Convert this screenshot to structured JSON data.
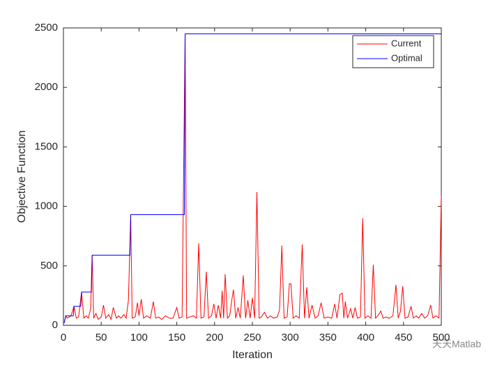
{
  "chart_data": {
    "type": "line",
    "xlabel": "Iteration",
    "ylabel": "Objective Function",
    "xlim": [
      0,
      500
    ],
    "ylim": [
      0,
      2500
    ],
    "xticks": [
      0,
      50,
      100,
      150,
      200,
      250,
      300,
      350,
      400,
      450,
      500
    ],
    "yticks": [
      0,
      500,
      1000,
      1500,
      2000,
      2500
    ],
    "legend_position": "upper-right",
    "watermark": "天天Matlab",
    "series": [
      {
        "name": "Current",
        "color": "#ff0000",
        "x": [
          1,
          3,
          5,
          10,
          14,
          17,
          20,
          24,
          27,
          30,
          33,
          36,
          38,
          40,
          43,
          46,
          50,
          53,
          56,
          60,
          63,
          66,
          70,
          73,
          76,
          80,
          83,
          86,
          89,
          91,
          95,
          98,
          100,
          103,
          106,
          110,
          115,
          119,
          122,
          126,
          130,
          135,
          140,
          145,
          150,
          153,
          157,
          161,
          163,
          167,
          172,
          176,
          179,
          182,
          186,
          189,
          192,
          196,
          199,
          202,
          205,
          208,
          210,
          212,
          214,
          217,
          220,
          223,
          225,
          228,
          231,
          234,
          238,
          241,
          244,
          247,
          250,
          253,
          256,
          259,
          262,
          266,
          270,
          274,
          278,
          283,
          286,
          289,
          292,
          296,
          299,
          301,
          304,
          308,
          312,
          316,
          319,
          322,
          325,
          329,
          333,
          337,
          341,
          345,
          350,
          355,
          359,
          362,
          366,
          369,
          371,
          373,
          376,
          380,
          383,
          386,
          389,
          393,
          396,
          399,
          403,
          407,
          410,
          413,
          416,
          420,
          423,
          427,
          431,
          436,
          440,
          443,
          446,
          449,
          452,
          456,
          460,
          463,
          467,
          470,
          474,
          478,
          482,
          486,
          489,
          493,
          497,
          500
        ],
        "values": [
          20,
          80,
          60,
          80,
          160,
          60,
          70,
          280,
          60,
          80,
          60,
          140,
          590,
          60,
          100,
          50,
          70,
          170,
          60,
          90,
          50,
          150,
          60,
          80,
          60,
          90,
          60,
          210,
          930,
          60,
          70,
          190,
          80,
          220,
          60,
          80,
          60,
          200,
          60,
          70,
          50,
          80,
          60,
          60,
          150,
          60,
          70,
          2450,
          60,
          70,
          80,
          60,
          690,
          60,
          70,
          450,
          60,
          80,
          180,
          60,
          170,
          60,
          290,
          60,
          430,
          60,
          80,
          220,
          300,
          60,
          150,
          60,
          420,
          60,
          210,
          60,
          230,
          60,
          1120,
          60,
          70,
          110,
          60,
          80,
          60,
          70,
          130,
          670,
          60,
          70,
          350,
          350,
          60,
          80,
          60,
          680,
          60,
          320,
          60,
          170,
          60,
          80,
          190,
          60,
          70,
          60,
          180,
          60,
          260,
          270,
          60,
          200,
          60,
          140,
          60,
          150,
          60,
          70,
          900,
          60,
          80,
          60,
          510,
          60,
          80,
          120,
          60,
          70,
          60,
          80,
          340,
          60,
          120,
          330,
          60,
          70,
          160,
          60,
          80,
          60,
          100,
          60,
          80,
          170,
          60,
          80,
          60,
          1090
        ]
      },
      {
        "name": "Optimal",
        "color": "#0000ff",
        "x": [
          1,
          3,
          13,
          14,
          23,
          24,
          37,
          38,
          88,
          89,
          160,
          161,
          500
        ],
        "values": [
          20,
          80,
          80,
          160,
          160,
          280,
          280,
          590,
          590,
          930,
          930,
          2450,
          2450
        ]
      }
    ]
  }
}
